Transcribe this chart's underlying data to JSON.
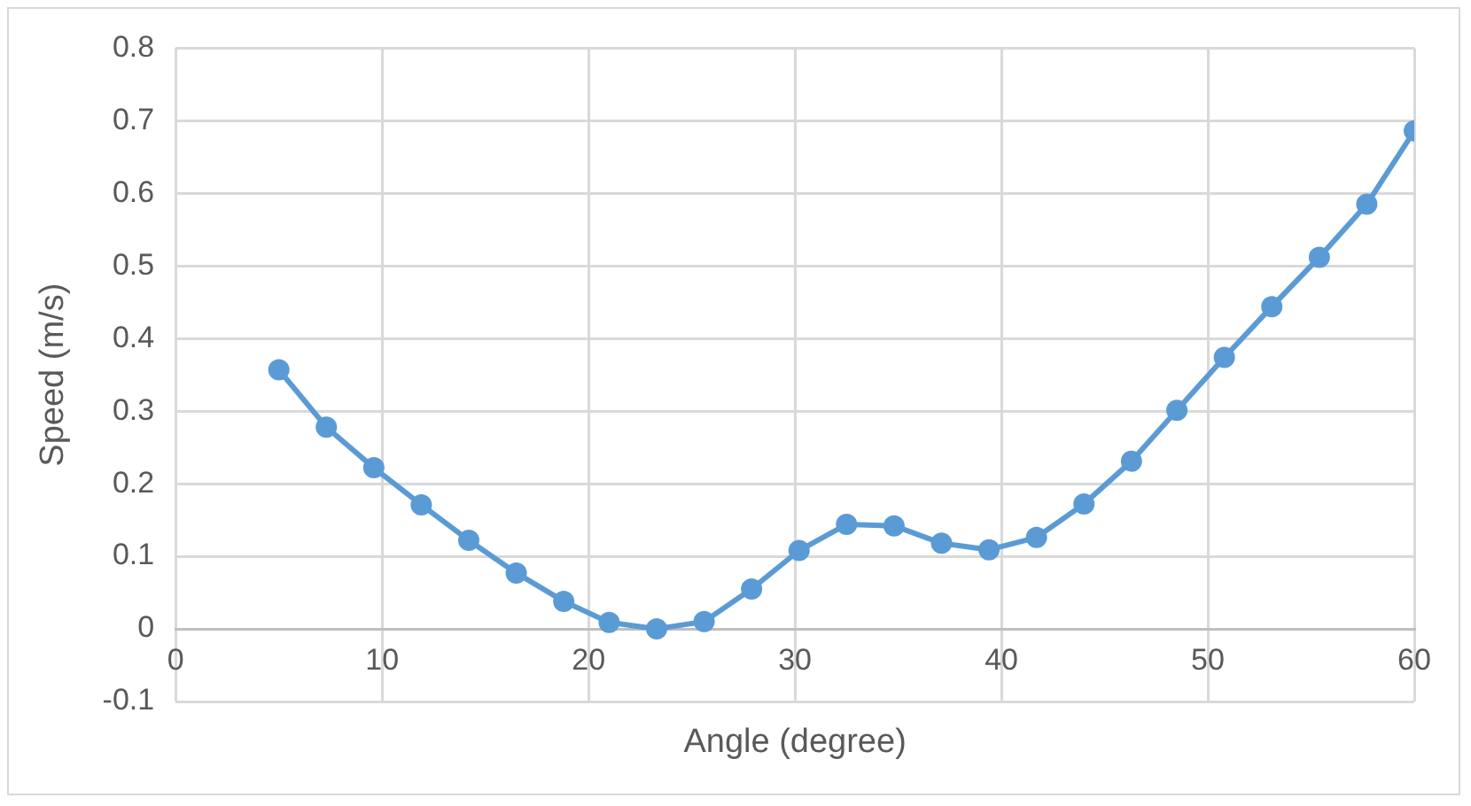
{
  "chart_data": {
    "type": "line",
    "xlabel": "Angle (degree)",
    "ylabel": "Speed (m/s)",
    "x": [
      5,
      7.3,
      9.6,
      11.9,
      14.2,
      16.5,
      18.8,
      21,
      23.3,
      25.6,
      27.9,
      30.2,
      32.5,
      34.8,
      37.1,
      39.4,
      41.7,
      44,
      46.3,
      48.5,
      50.8,
      53.1,
      55.4,
      57.7,
      60
    ],
    "series": [
      {
        "color": "#5b9bd5",
        "values": [
          0.357,
          0.278,
          0.222,
          0.171,
          0.122,
          0.077,
          0.038,
          0.009,
          0,
          0.01,
          0.055,
          0.108,
          0.144,
          0.142,
          0.118,
          0.109,
          0.126,
          0.172,
          0.231,
          0.301,
          0.374,
          0.444,
          0.512,
          0.585,
          0.686
        ]
      }
    ],
    "xlim": [
      0,
      60
    ],
    "xticks": [
      0,
      10,
      20,
      30,
      40,
      50,
      60
    ],
    "ylim": [
      -0.1,
      0.8
    ],
    "yticks": [
      -0.1,
      0,
      0.1,
      0.2,
      0.3,
      0.4,
      0.5,
      0.6,
      0.7,
      0.8
    ],
    "grid": true,
    "legend": false,
    "marker": "circle",
    "line_style": "solid"
  }
}
